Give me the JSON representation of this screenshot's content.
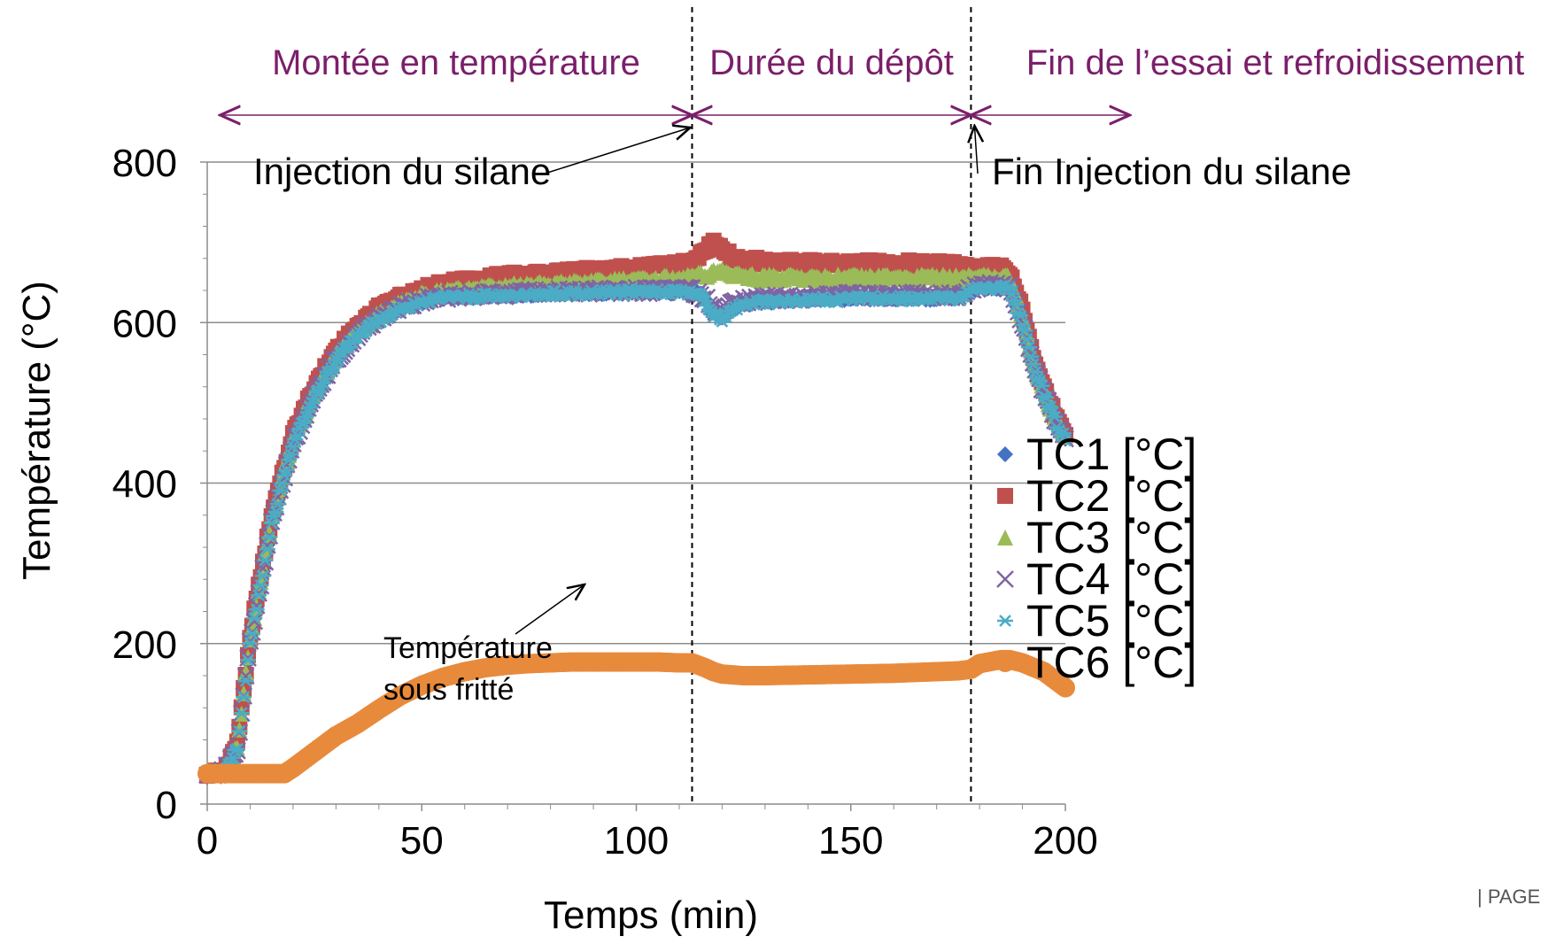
{
  "chart_data": {
    "type": "scatter",
    "title": "",
    "xlabel": "Temps (min)",
    "ylabel": "Température (°C)",
    "xlim": [
      0,
      200
    ],
    "ylim": [
      0,
      800
    ],
    "x_ticks": [
      0,
      50,
      100,
      150,
      200
    ],
    "y_ticks": [
      0,
      200,
      400,
      600,
      800
    ],
    "grid": "horizontal major lines",
    "legend_position": "right",
    "series": [
      {
        "name": "TC1 [°C]",
        "marker": "diamond",
        "color": "#4472c4",
        "x": [
          0,
          4,
          7,
          10,
          15,
          20,
          25,
          30,
          35,
          40,
          45,
          50,
          55,
          60,
          70,
          80,
          90,
          100,
          105,
          110,
          113,
          116,
          118,
          120,
          122,
          125,
          130,
          140,
          150,
          160,
          170,
          175,
          178,
          180,
          185,
          187,
          190,
          193,
          196,
          198,
          200
        ],
        "y": [
          38,
          40,
          70,
          200,
          350,
          450,
          510,
          555,
          585,
          605,
          620,
          628,
          632,
          634,
          636,
          638,
          639,
          640,
          640,
          640,
          640,
          630,
          612,
          605,
          618,
          625,
          628,
          630,
          632,
          632,
          632,
          632,
          640,
          645,
          645,
          643,
          600,
          540,
          500,
          475,
          455
        ]
      },
      {
        "name": "TC2 [°C]",
        "marker": "square",
        "color": "#c0504d",
        "x": [
          0,
          4,
          7,
          10,
          15,
          20,
          25,
          30,
          35,
          40,
          45,
          50,
          55,
          60,
          70,
          80,
          90,
          100,
          105,
          110,
          113,
          116,
          118,
          120,
          122,
          125,
          130,
          140,
          150,
          160,
          170,
          175,
          178,
          180,
          185,
          187,
          190,
          193,
          196,
          198,
          200
        ],
        "y": [
          38,
          42,
          75,
          210,
          360,
          460,
          520,
          565,
          595,
          618,
          632,
          642,
          648,
          652,
          658,
          662,
          665,
          668,
          670,
          672,
          675,
          690,
          700,
          695,
          682,
          678,
          676,
          674,
          674,
          674,
          674,
          672,
          668,
          668,
          668,
          663,
          615,
          545,
          505,
          480,
          460
        ]
      },
      {
        "name": "TC3 [°C]",
        "marker": "triangle",
        "color": "#9bbb59",
        "x": [
          0,
          4,
          7,
          10,
          15,
          20,
          25,
          30,
          35,
          40,
          45,
          50,
          55,
          60,
          70,
          80,
          90,
          100,
          105,
          110,
          113,
          116,
          118,
          120,
          122,
          125,
          130,
          140,
          150,
          160,
          170,
          175,
          178,
          180,
          185,
          187,
          190,
          193,
          196,
          198,
          200
        ],
        "y": [
          38,
          41,
          72,
          205,
          355,
          455,
          515,
          560,
          590,
          610,
          625,
          634,
          638,
          641,
          645,
          648,
          650,
          652,
          654,
          655,
          657,
          660,
          662,
          664,
          660,
          658,
          656,
          656,
          656,
          656,
          656,
          656,
          656,
          657,
          657,
          655,
          605,
          540,
          502,
          478,
          458
        ]
      },
      {
        "name": "TC4 [°C]",
        "marker": "x",
        "color": "#8064a2",
        "x": [
          0,
          4,
          7,
          10,
          15,
          20,
          25,
          30,
          35,
          40,
          45,
          50,
          55,
          60,
          70,
          80,
          90,
          100,
          105,
          110,
          113,
          116,
          118,
          120,
          122,
          125,
          130,
          140,
          150,
          160,
          170,
          175,
          178,
          180,
          185,
          187,
          190,
          193,
          196,
          198,
          200
        ],
        "y": [
          38,
          40,
          70,
          200,
          350,
          450,
          510,
          555,
          585,
          605,
          620,
          628,
          632,
          634,
          636,
          638,
          639,
          640,
          640,
          640,
          640,
          632,
          618,
          612,
          622,
          628,
          630,
          632,
          634,
          634,
          634,
          634,
          642,
          646,
          646,
          644,
          600,
          540,
          500,
          475,
          455
        ]
      },
      {
        "name": "TC5 [°C]",
        "marker": "asterisk",
        "color": "#4bacc6",
        "x": [
          0,
          4,
          7,
          10,
          15,
          20,
          25,
          30,
          35,
          40,
          45,
          50,
          55,
          60,
          70,
          80,
          90,
          100,
          105,
          110,
          113,
          116,
          118,
          120,
          122,
          125,
          130,
          140,
          150,
          160,
          170,
          175,
          178,
          180,
          185,
          187,
          190,
          193,
          196,
          198,
          200
        ],
        "y": [
          38,
          40,
          68,
          198,
          348,
          448,
          508,
          553,
          583,
          603,
          618,
          626,
          630,
          632,
          634,
          636,
          637,
          638,
          638,
          638,
          638,
          628,
          610,
          604,
          616,
          623,
          626,
          628,
          630,
          630,
          630,
          630,
          638,
          644,
          644,
          642,
          598,
          538,
          498,
          473,
          453
        ]
      },
      {
        "name": "TC6 [°C]",
        "marker": "circle",
        "color": "#e88a3c",
        "x": [
          0,
          5,
          10,
          15,
          18,
          20,
          25,
          30,
          35,
          40,
          45,
          50,
          55,
          60,
          65,
          70,
          75,
          80,
          85,
          90,
          95,
          100,
          105,
          110,
          113,
          116,
          118,
          120,
          125,
          130,
          140,
          150,
          160,
          170,
          175,
          178,
          180,
          185,
          187,
          190,
          195,
          200
        ],
        "y": [
          38,
          38,
          38,
          38,
          38,
          45,
          65,
          85,
          100,
          118,
          135,
          148,
          158,
          165,
          170,
          173,
          175,
          176,
          177,
          177,
          177,
          177,
          177,
          176,
          176,
          170,
          165,
          162,
          160,
          160,
          161,
          162,
          163,
          165,
          166,
          168,
          175,
          180,
          180,
          176,
          165,
          145
        ]
      }
    ],
    "annotations": [
      {
        "text": "Injection du silane",
        "x": 113,
        "y": 840
      },
      {
        "text": "Fin Injection du silane",
        "x": 178,
        "y": 840
      },
      {
        "text": "Température",
        "x": 105,
        "y": 180
      },
      {
        "text": "sous fritté",
        "x": 105,
        "y": 180
      }
    ],
    "phases": [
      {
        "label": "Montée en température",
        "x_start": 3,
        "x_end": 113
      },
      {
        "label": "Durée du dépôt",
        "x_start": 113,
        "x_end": 178
      },
      {
        "label": "Fin de l’essai et refroidissement",
        "x_start": 178,
        "x_end": 215
      }
    ],
    "vertical_markers": [
      113,
      178
    ]
  },
  "footer": {
    "page_label": "| PAGE"
  }
}
